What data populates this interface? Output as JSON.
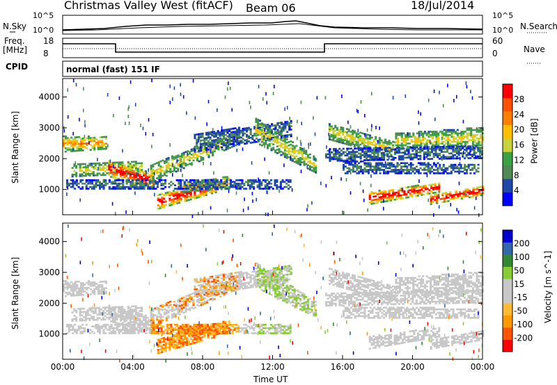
{
  "header": {
    "station": "Christmas Valley West (fitACF)",
    "beam": "Beam 06",
    "date": "18/Jul/2014"
  },
  "noise_panel": {
    "left_label": "N.Sky",
    "right_label": "N.Search",
    "left_ticks": [
      "10^5",
      "10^0"
    ],
    "right_ticks": [
      "10^5",
      "10^0"
    ]
  },
  "freq_panel": {
    "left_label_1": "Freq.",
    "left_label_2": "[MHz]",
    "right_label": "Nave",
    "left_ticks": [
      "18",
      "8"
    ],
    "right_ticks": [
      "60",
      "0"
    ]
  },
  "cpid": {
    "label": "CPID",
    "mode": "normal (fast) 151 IF"
  },
  "colors": {
    "power_scale": [
      "#0000ff",
      "#1f48a8",
      "#4f8a55",
      "#3aa244",
      "#c8d23c",
      "#ffbf00",
      "#ff8000",
      "#ff5000",
      "#ff0000"
    ],
    "velocity_scale": [
      "#ff0000",
      "#ff5500",
      "#ff9900",
      "#ffbb33",
      "#c8c8c8",
      "#c8c8c8",
      "#88cc33",
      "#338833",
      "#3366aa",
      "#0000cc"
    ]
  },
  "chart_data": [
    {
      "type": "heatmap",
      "title": "",
      "xlabel": "Time UT",
      "ylabel": "Slant Range [km]",
      "x_ticks": [
        "00:00",
        "04:00",
        "08:00",
        "12:00",
        "16:00",
        "20:00",
        "00:00"
      ],
      "x_range_hours": [
        0,
        24
      ],
      "y_ticks": [
        1000,
        2000,
        3000,
        4000
      ],
      "ylim": [
        180,
        4600
      ],
      "colorbar": {
        "label": "Power [dB]",
        "ticks": [
          4,
          8,
          12,
          16,
          20,
          24,
          28
        ],
        "range": [
          0,
          32
        ]
      }
    },
    {
      "type": "heatmap",
      "title": "",
      "xlabel": "Time UT",
      "ylabel": "Slant Range [km]",
      "x_ticks": [
        "00:00",
        "04:00",
        "08:00",
        "12:00",
        "16:00",
        "20:00",
        "00:00"
      ],
      "x_range_hours": [
        0,
        24
      ],
      "y_ticks": [
        1000,
        2000,
        3000,
        4000
      ],
      "ylim": [
        180,
        4600
      ],
      "colorbar": {
        "label": "Velocity [m s^-1]",
        "ticks": [
          -200,
          -100,
          -50,
          -15,
          15,
          50,
          100,
          200
        ]
      }
    }
  ]
}
